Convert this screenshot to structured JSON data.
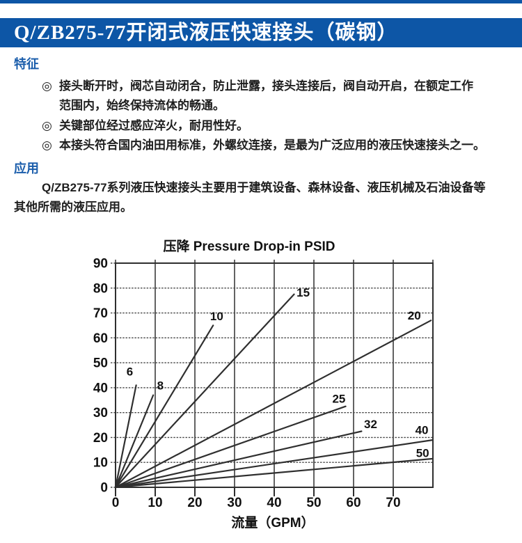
{
  "page": {
    "accent_color": "#0d56a6",
    "heading_color": "#1a5dab",
    "header": {
      "title": "Q/ZB275-77开闭式液压快速接头（碳钢）"
    },
    "sections": {
      "features": {
        "heading": "特征",
        "bullets": [
          {
            "marker": "◎",
            "text": "接头断开时，阀芯自动闭合，防止泄露，接头连接后，阀自动开启，在额定工作范围内，始终保持流体的畅通。"
          },
          {
            "marker": "◎",
            "text": "关键部位经过感应淬火，耐用性好。"
          },
          {
            "marker": "◎",
            "text": "本接头符合国内油田用标准，外螺纹连接，是最为广泛应用的液压快速接头之一。"
          }
        ]
      },
      "application": {
        "heading": "应用",
        "paragraph": "Q/ZB275-77系列液压快速接头主要用于建筑设备、森林设备、液压机械及石油设备等其他所需的液压应用。"
      }
    }
  },
  "chart_data": {
    "type": "line",
    "title": "压降 Pressure Drop-in PSID",
    "xlabel": "流量（GPM）",
    "ylabel": "",
    "xlim": [
      0,
      80
    ],
    "ylim": [
      0,
      90
    ],
    "grid_step": {
      "x": 10,
      "y": 10
    },
    "xticks": [
      0,
      10,
      20,
      30,
      40,
      50,
      60,
      70
    ],
    "yticks": [
      0,
      10,
      20,
      30,
      40,
      50,
      60,
      70,
      80,
      90
    ],
    "grid": true,
    "line_color": "#2f2f2f",
    "grid_color": "#474747",
    "series": [
      {
        "name": "6",
        "x": [
          0,
          5.2
        ],
        "y": [
          0,
          41
        ],
        "label_at": [
          3.6,
          46.5
        ]
      },
      {
        "name": "8",
        "x": [
          0,
          9.5
        ],
        "y": [
          0,
          37
        ],
        "label_at": [
          11.3,
          41
        ]
      },
      {
        "name": "10",
        "x": [
          0,
          24.6
        ],
        "y": [
          0,
          65
        ],
        "label_at": [
          25.5,
          68.8
        ]
      },
      {
        "name": "15",
        "x": [
          0,
          45
        ],
        "y": [
          0,
          77.5
        ],
        "label_at": [
          47.3,
          78.3
        ]
      },
      {
        "name": "20",
        "x": [
          0,
          79.5
        ],
        "y": [
          0,
          67
        ],
        "label_at": [
          75.3,
          69
        ]
      },
      {
        "name": "25",
        "x": [
          0,
          58
        ],
        "y": [
          0,
          32.5
        ],
        "label_at": [
          56.3,
          35.7
        ]
      },
      {
        "name": "32",
        "x": [
          0,
          62
        ],
        "y": [
          0,
          22.5
        ],
        "label_at": [
          64.3,
          25.4
        ]
      },
      {
        "name": "40",
        "x": [
          0,
          80
        ],
        "y": [
          0,
          19
        ],
        "label_at": [
          77.2,
          23
        ]
      },
      {
        "name": "50",
        "x": [
          0,
          80
        ],
        "y": [
          0,
          11.5
        ],
        "label_at": [
          77.4,
          13.8
        ]
      }
    ]
  }
}
